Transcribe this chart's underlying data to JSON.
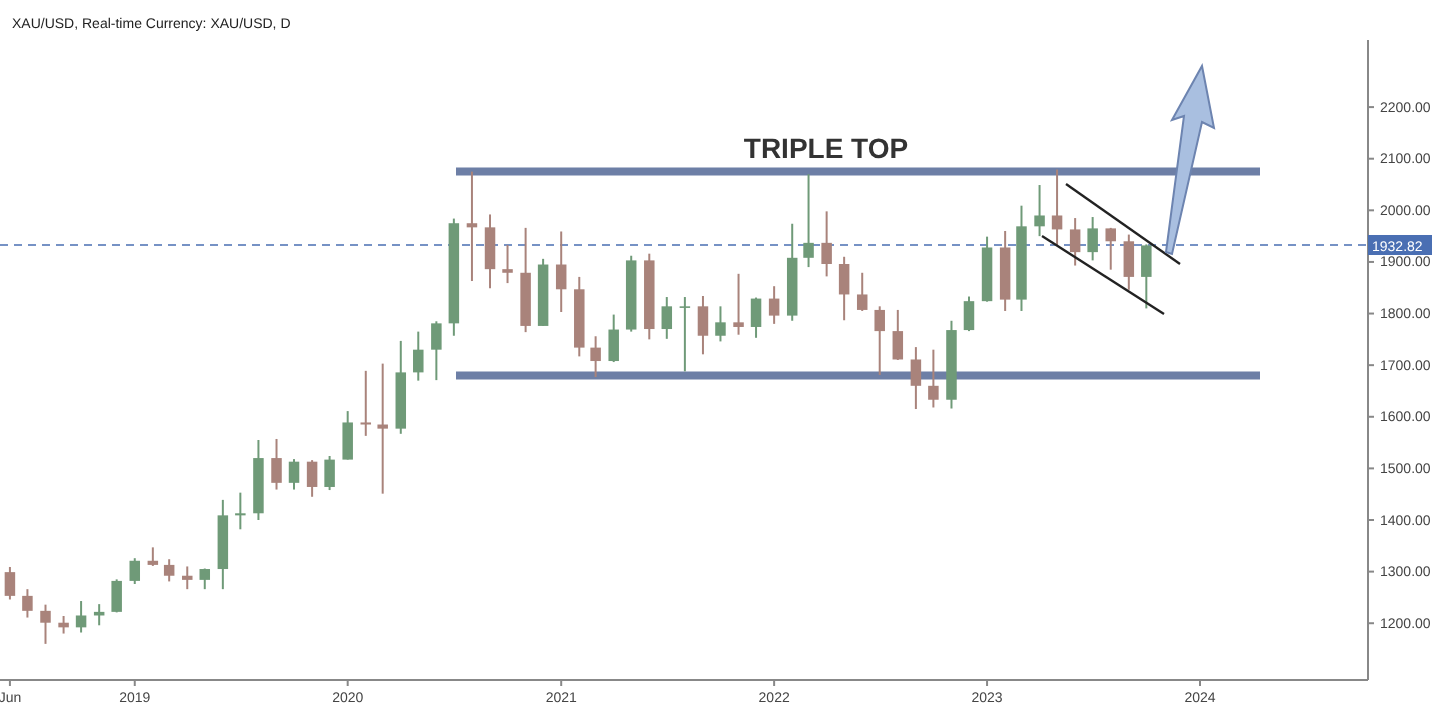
{
  "chart_data": {
    "type": "candlestick",
    "subtitle": "XAU/USD, Real-time Currency: XAU/USD, D",
    "annotations": [
      "TRIPLE TOP"
    ],
    "x": [
      "2018-06",
      "2018-07",
      "2018-08",
      "2018-09",
      "2018-10",
      "2018-11",
      "2018-12",
      "2019-01",
      "2019-02",
      "2019-03",
      "2019-04",
      "2019-05",
      "2019-06",
      "2019-07",
      "2019-08",
      "2019-09",
      "2019-10",
      "2019-11",
      "2019-12",
      "2020-01",
      "2020-02",
      "2020-03",
      "2020-04",
      "2020-05",
      "2020-06",
      "2020-07",
      "2020-08",
      "2020-09",
      "2020-10",
      "2020-11",
      "2020-12",
      "2021-01",
      "2021-02",
      "2021-03",
      "2021-04",
      "2021-05",
      "2021-06",
      "2021-07",
      "2021-08",
      "2021-09",
      "2021-10",
      "2021-11",
      "2021-12",
      "2022-01",
      "2022-02",
      "2022-03",
      "2022-04",
      "2022-05",
      "2022-06",
      "2022-07",
      "2022-08",
      "2022-09",
      "2022-10",
      "2022-11",
      "2022-12",
      "2023-01",
      "2023-02",
      "2023-03",
      "2023-04",
      "2023-05",
      "2023-06",
      "2023-07",
      "2023-08",
      "2023-09",
      "2023-10"
    ],
    "ohlc": [
      [
        1299,
        1309,
        1246,
        1253
      ],
      [
        1253,
        1266,
        1211,
        1224
      ],
      [
        1224,
        1236,
        1160,
        1201
      ],
      [
        1201,
        1214,
        1180,
        1192
      ],
      [
        1192,
        1243,
        1182,
        1215
      ],
      [
        1215,
        1237,
        1196,
        1222
      ],
      [
        1222,
        1285,
        1221,
        1282
      ],
      [
        1282,
        1326,
        1276,
        1321
      ],
      [
        1321,
        1347,
        1311,
        1313
      ],
      [
        1313,
        1324,
        1281,
        1292
      ],
      [
        1292,
        1310,
        1266,
        1284
      ],
      [
        1284,
        1306,
        1266,
        1305
      ],
      [
        1305,
        1439,
        1266,
        1409
      ],
      [
        1409,
        1453,
        1382,
        1413
      ],
      [
        1413,
        1555,
        1400,
        1520
      ],
      [
        1520,
        1557,
        1459,
        1472
      ],
      [
        1472,
        1518,
        1459,
        1513
      ],
      [
        1513,
        1516,
        1445,
        1464
      ],
      [
        1464,
        1524,
        1458,
        1517
      ],
      [
        1517,
        1611,
        1517,
        1589
      ],
      [
        1589,
        1689,
        1563,
        1585
      ],
      [
        1585,
        1703,
        1451,
        1577
      ],
      [
        1577,
        1747,
        1567,
        1686
      ],
      [
        1686,
        1765,
        1670,
        1730
      ],
      [
        1730,
        1785,
        1671,
        1781
      ],
      [
        1781,
        1984,
        1757,
        1975
      ],
      [
        1975,
        2075,
        1863,
        1967
      ],
      [
        1967,
        1992,
        1849,
        1886
      ],
      [
        1886,
        1933,
        1859,
        1879
      ],
      [
        1879,
        1966,
        1764,
        1776
      ],
      [
        1776,
        1906,
        1776,
        1895
      ],
      [
        1895,
        1959,
        1803,
        1847
      ],
      [
        1847,
        1871,
        1717,
        1734
      ],
      [
        1734,
        1756,
        1677,
        1708
      ],
      [
        1708,
        1798,
        1706,
        1769
      ],
      [
        1769,
        1912,
        1765,
        1903
      ],
      [
        1903,
        1916,
        1750,
        1770
      ],
      [
        1770,
        1832,
        1751,
        1814
      ],
      [
        1814,
        1832,
        1688,
        1814
      ],
      [
        1814,
        1834,
        1721,
        1757
      ],
      [
        1757,
        1814,
        1746,
        1783
      ],
      [
        1783,
        1877,
        1759,
        1774
      ],
      [
        1774,
        1831,
        1753,
        1829
      ],
      [
        1829,
        1853,
        1780,
        1796
      ],
      [
        1796,
        1974,
        1786,
        1908
      ],
      [
        1908,
        2070,
        1890,
        1937
      ],
      [
        1937,
        1998,
        1872,
        1896
      ],
      [
        1896,
        1910,
        1787,
        1837
      ],
      [
        1837,
        1879,
        1805,
        1807
      ],
      [
        1807,
        1814,
        1681,
        1766
      ],
      [
        1766,
        1807,
        1710,
        1711
      ],
      [
        1711,
        1735,
        1615,
        1660
      ],
      [
        1660,
        1730,
        1618,
        1633
      ],
      [
        1633,
        1786,
        1616,
        1768
      ],
      [
        1768,
        1833,
        1766,
        1824
      ],
      [
        1824,
        1949,
        1823,
        1928
      ],
      [
        1928,
        1960,
        1805,
        1827
      ],
      [
        1827,
        2009,
        1805,
        1969
      ],
      [
        1969,
        2049,
        1950,
        1990
      ],
      [
        1990,
        2079,
        1932,
        1963
      ],
      [
        1963,
        1985,
        1893,
        1919
      ],
      [
        1919,
        1987,
        1903,
        1965
      ],
      [
        1965,
        1966,
        1885,
        1940
      ],
      [
        1940,
        1953,
        1846,
        1871
      ],
      [
        1871,
        1934,
        1810,
        1932
      ]
    ],
    "xlim": [
      "2018-05-15",
      "2024-10-15"
    ],
    "xticks": [
      {
        "value": "2018-06",
        "label": "Jun"
      },
      {
        "value": "2019-01",
        "label": "2019"
      },
      {
        "value": "2020-01",
        "label": "2020"
      },
      {
        "value": "2021-01",
        "label": "2021"
      },
      {
        "value": "2022-01",
        "label": "2022"
      },
      {
        "value": "2023-01",
        "label": "2023"
      },
      {
        "value": "2024-01",
        "label": "2024"
      }
    ],
    "ylim": [
      1090,
      2330
    ],
    "yticks": [
      {
        "value": 1200,
        "label": "1200.00"
      },
      {
        "value": 1300,
        "label": "1300.00"
      },
      {
        "value": 1400,
        "label": "1400.00"
      },
      {
        "value": 1500,
        "label": "1500.00"
      },
      {
        "value": 1600,
        "label": "1600.00"
      },
      {
        "value": 1700,
        "label": "1700.00"
      },
      {
        "value": 1800,
        "label": "1800.00"
      },
      {
        "value": 1900,
        "label": "1900.00"
      },
      {
        "value": 2000,
        "label": "2000.00"
      },
      {
        "value": 2100,
        "label": "2100.00"
      },
      {
        "value": 2200,
        "label": "2200.00"
      }
    ],
    "ref_lines": [
      {
        "axis": "y",
        "value": 2075,
        "color": "#6d7fa6",
        "line_style": "solid"
      },
      {
        "axis": "y",
        "value": 1680,
        "color": "#6d7fa6",
        "line_style": "solid"
      },
      {
        "axis": "y",
        "value": 1932.82,
        "label": "1932.82",
        "color": "#4a6fb3",
        "line_style": "dashed"
      }
    ],
    "grid": false
  }
}
